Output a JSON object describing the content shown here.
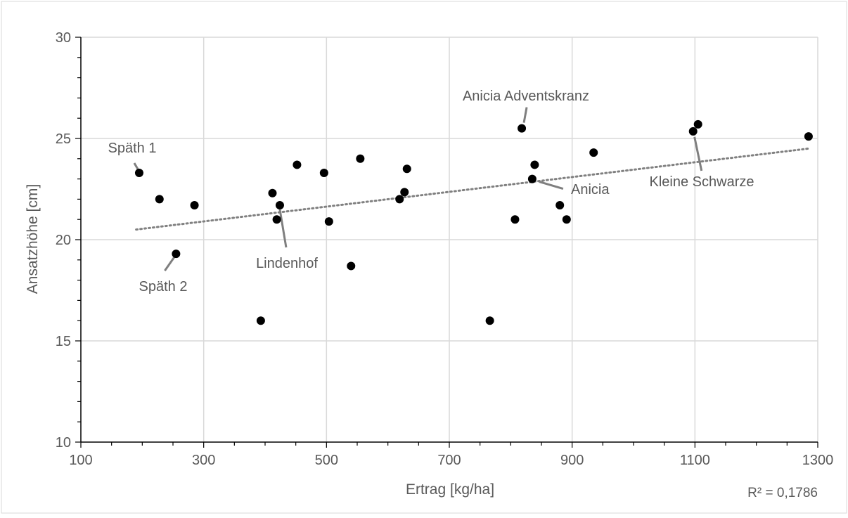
{
  "chart_data": {
    "type": "scatter",
    "xlabel": "Ertrag [kg/ha]",
    "ylabel": "Ansatzhöhe [cm]",
    "xlim": [
      100,
      1300
    ],
    "ylim": [
      10,
      30
    ],
    "xticks": [
      100,
      300,
      500,
      700,
      900,
      1100,
      1300
    ],
    "yticks": [
      10,
      15,
      20,
      25,
      30
    ],
    "grid": true,
    "r_squared_label": "R² = 0,1786",
    "colors": {
      "points": "#000000",
      "grid": "#d9d9d9",
      "axis": "#000000",
      "trendline": "#808080",
      "text": "#595959"
    },
    "points": [
      {
        "x": 195,
        "y": 23.3
      },
      {
        "x": 228,
        "y": 22.0
      },
      {
        "x": 255,
        "y": 19.3
      },
      {
        "x": 285,
        "y": 21.7
      },
      {
        "x": 393,
        "y": 16.0
      },
      {
        "x": 412,
        "y": 22.3
      },
      {
        "x": 419,
        "y": 21.0
      },
      {
        "x": 424,
        "y": 21.7
      },
      {
        "x": 452,
        "y": 23.7
      },
      {
        "x": 496,
        "y": 23.3
      },
      {
        "x": 504,
        "y": 20.9
      },
      {
        "x": 540,
        "y": 18.7
      },
      {
        "x": 555,
        "y": 24.0
      },
      {
        "x": 619,
        "y": 22.0
      },
      {
        "x": 627,
        "y": 22.35
      },
      {
        "x": 631,
        "y": 23.5
      },
      {
        "x": 766,
        "y": 16.0
      },
      {
        "x": 807,
        "y": 21.0
      },
      {
        "x": 818,
        "y": 25.5
      },
      {
        "x": 835,
        "y": 23.0
      },
      {
        "x": 839,
        "y": 23.7
      },
      {
        "x": 880,
        "y": 21.7
      },
      {
        "x": 891,
        "y": 21.0
      },
      {
        "x": 935,
        "y": 24.3
      },
      {
        "x": 1097,
        "y": 25.35
      },
      {
        "x": 1105,
        "y": 25.7
      },
      {
        "x": 1285,
        "y": 25.1
      }
    ],
    "trendline": {
      "style": "dotted",
      "x": [
        190,
        1285
      ],
      "y": [
        20.5,
        24.5
      ]
    },
    "annotations": [
      {
        "text": "Späth 1",
        "point_x": 195,
        "point_y": 23.3
      },
      {
        "text": "Späth 2",
        "point_x": 255,
        "point_y": 19.3
      },
      {
        "text": "Lindenhof",
        "point_x": 424,
        "point_y": 21.7
      },
      {
        "text": "Anicia Adventskranz",
        "point_x": 818,
        "point_y": 25.5
      },
      {
        "text": "Anicia",
        "point_x": 835,
        "point_y": 23.0
      },
      {
        "text": "Kleine Schwarze",
        "point_x": 1097,
        "point_y": 25.35
      }
    ]
  }
}
